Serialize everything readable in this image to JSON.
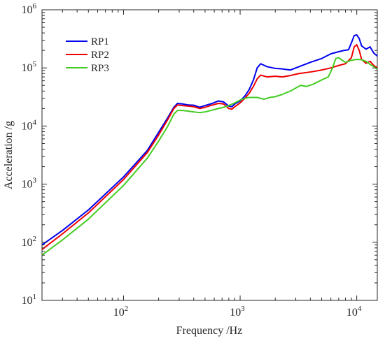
{
  "chart_data": {
    "type": "line",
    "xlabel": "Frequency /Hz",
    "ylabel": "Acceleration /g",
    "x_scale": "log",
    "y_scale": "log",
    "xlim": [
      20,
      15000
    ],
    "ylim": [
      10,
      1000000
    ],
    "x_ticks": [
      {
        "value": 100,
        "base": "10",
        "exp": "2"
      },
      {
        "value": 1000,
        "base": "10",
        "exp": "3"
      },
      {
        "value": 10000,
        "base": "10",
        "exp": "4"
      }
    ],
    "y_ticks": [
      {
        "value": 10,
        "base": "10",
        "exp": "1"
      },
      {
        "value": 100,
        "base": "10",
        "exp": "2"
      },
      {
        "value": 1000,
        "base": "10",
        "exp": "3"
      },
      {
        "value": 10000,
        "base": "10",
        "exp": "4"
      },
      {
        "value": 100000,
        "base": "10",
        "exp": "5"
      },
      {
        "value": 1000000,
        "base": "10",
        "exp": "6"
      }
    ],
    "grid": false,
    "legend_position": "top-left",
    "series": [
      {
        "name": "RP1",
        "color": "#0000ee",
        "points": [
          [
            20,
            90
          ],
          [
            30,
            160
          ],
          [
            50,
            360
          ],
          [
            100,
            1330
          ],
          [
            160,
            3800
          ],
          [
            200,
            7800
          ],
          [
            240,
            14000
          ],
          [
            270,
            21000
          ],
          [
            290,
            24500
          ],
          [
            320,
            24000
          ],
          [
            360,
            23000
          ],
          [
            400,
            22800
          ],
          [
            450,
            21000
          ],
          [
            500,
            22500
          ],
          [
            560,
            24000
          ],
          [
            650,
            27000
          ],
          [
            720,
            26000
          ],
          [
            800,
            22000
          ],
          [
            850,
            21500
          ],
          [
            900,
            24000
          ],
          [
            1000,
            27000
          ],
          [
            1100,
            33000
          ],
          [
            1200,
            43000
          ],
          [
            1300,
            62000
          ],
          [
            1400,
            100000
          ],
          [
            1500,
            118000
          ],
          [
            1700,
            105000
          ],
          [
            2000,
            98000
          ],
          [
            2300,
            96000
          ],
          [
            2700,
            92000
          ],
          [
            3200,
            105000
          ],
          [
            4000,
            125000
          ],
          [
            5000,
            145000
          ],
          [
            6000,
            175000
          ],
          [
            7000,
            190000
          ],
          [
            7800,
            200000
          ],
          [
            8500,
            205000
          ],
          [
            9000,
            270000
          ],
          [
            9500,
            360000
          ],
          [
            10000,
            370000
          ],
          [
            10500,
            320000
          ],
          [
            11000,
            240000
          ],
          [
            12000,
            210000
          ],
          [
            13000,
            230000
          ],
          [
            14000,
            180000
          ],
          [
            15000,
            160000
          ]
        ]
      },
      {
        "name": "RP2",
        "color": "#ee0000",
        "points": [
          [
            20,
            75
          ],
          [
            30,
            140
          ],
          [
            50,
            320
          ],
          [
            100,
            1200
          ],
          [
            160,
            3500
          ],
          [
            200,
            7000
          ],
          [
            240,
            13000
          ],
          [
            270,
            20000
          ],
          [
            290,
            23000
          ],
          [
            320,
            22500
          ],
          [
            360,
            22000
          ],
          [
            400,
            21500
          ],
          [
            450,
            20000
          ],
          [
            500,
            21000
          ],
          [
            560,
            22500
          ],
          [
            650,
            24500
          ],
          [
            720,
            24000
          ],
          [
            800,
            20000
          ],
          [
            850,
            19500
          ],
          [
            900,
            21500
          ],
          [
            1000,
            25000
          ],
          [
            1100,
            30000
          ],
          [
            1200,
            37000
          ],
          [
            1300,
            48000
          ],
          [
            1400,
            65000
          ],
          [
            1500,
            75000
          ],
          [
            1700,
            70000
          ],
          [
            2000,
            72000
          ],
          [
            2300,
            70000
          ],
          [
            2700,
            74000
          ],
          [
            3200,
            80000
          ],
          [
            4000,
            85000
          ],
          [
            5000,
            92000
          ],
          [
            6000,
            100000
          ],
          [
            7000,
            110000
          ],
          [
            8000,
            118000
          ],
          [
            9000,
            150000
          ],
          [
            9500,
            230000
          ],
          [
            10000,
            250000
          ],
          [
            10500,
            200000
          ],
          [
            11000,
            140000
          ],
          [
            12000,
            120000
          ],
          [
            13000,
            130000
          ],
          [
            14000,
            110000
          ],
          [
            15000,
            100000
          ]
        ]
      },
      {
        "name": "RP3",
        "color": "#44cc22",
        "points": [
          [
            20,
            60
          ],
          [
            30,
            110
          ],
          [
            50,
            250
          ],
          [
            100,
            950
          ],
          [
            160,
            2800
          ],
          [
            200,
            5500
          ],
          [
            240,
            10000
          ],
          [
            270,
            16000
          ],
          [
            290,
            18500
          ],
          [
            320,
            18500
          ],
          [
            360,
            18000
          ],
          [
            400,
            17500
          ],
          [
            450,
            17000
          ],
          [
            500,
            17500
          ],
          [
            560,
            18500
          ],
          [
            650,
            20000
          ],
          [
            720,
            21000
          ],
          [
            800,
            22500
          ],
          [
            900,
            25000
          ],
          [
            1000,
            28000
          ],
          [
            1100,
            30000
          ],
          [
            1200,
            31000
          ],
          [
            1400,
            31000
          ],
          [
            1600,
            29000
          ],
          [
            1800,
            31000
          ],
          [
            2000,
            32000
          ],
          [
            2300,
            35000
          ],
          [
            2700,
            40000
          ],
          [
            3000,
            45000
          ],
          [
            3300,
            50000
          ],
          [
            3700,
            48000
          ],
          [
            4200,
            52000
          ],
          [
            5000,
            62000
          ],
          [
            5700,
            70000
          ],
          [
            6200,
            100000
          ],
          [
            6600,
            145000
          ],
          [
            7000,
            150000
          ],
          [
            7500,
            135000
          ],
          [
            8000,
            125000
          ],
          [
            9000,
            135000
          ],
          [
            10000,
            140000
          ],
          [
            11000,
            138000
          ],
          [
            12000,
            130000
          ],
          [
            13000,
            115000
          ],
          [
            14000,
            105000
          ],
          [
            15000,
            95000
          ]
        ]
      }
    ]
  }
}
